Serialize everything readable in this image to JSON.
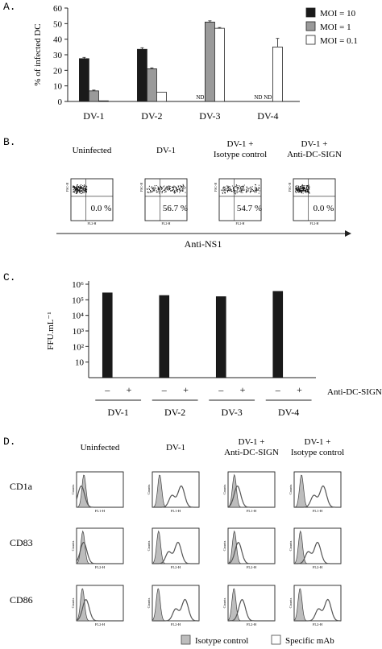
{
  "panel_labels": [
    "A.",
    "B.",
    "C.",
    "D."
  ],
  "chart_data": [
    {
      "type": "bar",
      "panel": "A.",
      "ylabel": "% of infected DC",
      "ylim": [
        0,
        60
      ],
      "yticks": [
        0,
        10,
        20,
        30,
        40,
        50,
        60
      ],
      "categories": [
        "DV-1",
        "DV-2",
        "DV-3",
        "DV-4"
      ],
      "series": [
        {
          "name": "MOI = 10",
          "color": "#1a1a1a",
          "values": [
            27.5,
            33.5,
            null,
            null
          ],
          "errors": [
            0.8,
            1.0,
            0,
            0
          ]
        },
        {
          "name": "MOI = 1",
          "color": "#9a9a9a",
          "values": [
            6.8,
            21,
            51,
            null
          ],
          "errors": [
            0.5,
            0.6,
            0.8,
            0
          ]
        },
        {
          "name": "MOI = 0.1",
          "color": "#ffffff",
          "values": [
            0.4,
            6,
            47,
            35
          ],
          "errors": [
            0.1,
            0.3,
            0.5,
            5.5
          ]
        }
      ],
      "na_label": "ND",
      "legend": "top-right",
      "grid": false
    },
    {
      "type": "bar",
      "panel": "C.",
      "ylabel": "FFU.mL⁻¹",
      "yscale": "log",
      "ytick_labels": [
        "10⁶",
        "10⁵",
        "10⁴",
        "10³",
        "10²",
        "10"
      ],
      "yticks": [
        1000000,
        100000,
        10000,
        1000,
        100,
        10
      ],
      "ylim": [
        1,
        1000000
      ],
      "groups": [
        "DV-1",
        "DV-2",
        "DV-3",
        "DV-4"
      ],
      "conditions": [
        "–",
        "+"
      ],
      "condition_label": "Anti-DC-SIGN",
      "values": [
        [
          280000,
          null
        ],
        [
          190000,
          null
        ],
        [
          160000,
          null
        ],
        [
          350000,
          null
        ]
      ],
      "color": "#1a1a1a",
      "grid": false
    }
  ],
  "panel_b": {
    "columns": [
      "Uninfected",
      "DV-1",
      "DV-1 +\nIsotype control",
      "DV-1 +\nAnti-DC-SIGN"
    ],
    "percent_values": [
      "0.0 %",
      "56.7 %",
      "54.7 %",
      "0.0 %"
    ],
    "x_axis_label": "FL2-H",
    "y_axis_label": "FSC-H",
    "arrow_label": "Anti-NS1"
  },
  "panel_d": {
    "columns": [
      "Uninfected",
      "DV-1",
      "DV-1 +\nAnti-DC-SIGN",
      "DV-1 +\nIsotype control"
    ],
    "rows": [
      {
        "label": "CD1a",
        "axis": "FL1-H"
      },
      {
        "label": "CD83",
        "axis": "FL2-H"
      },
      {
        "label": "CD86",
        "axis": "FL2-H"
      }
    ],
    "y_axis_label": "Counts",
    "legend": [
      "Isotype control",
      "Specific mAb"
    ]
  }
}
